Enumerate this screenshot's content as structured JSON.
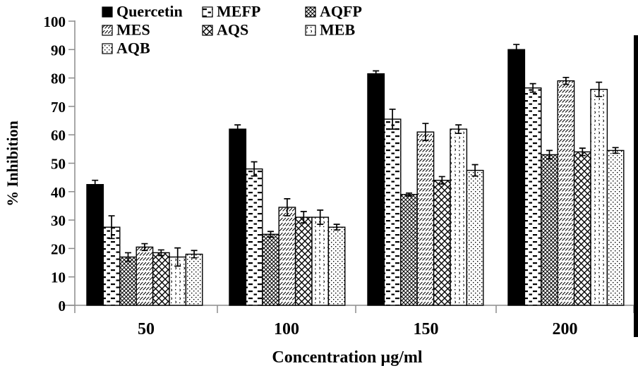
{
  "chart_data": {
    "type": "bar",
    "title": "",
    "xlabel": "Concentration µg/ml",
    "ylabel": "% Inhibition",
    "categories": [
      "50",
      "100",
      "150",
      "200"
    ],
    "ylim": [
      0,
      100
    ],
    "yticks": [
      0,
      10,
      20,
      30,
      40,
      50,
      60,
      70,
      80,
      90,
      100
    ],
    "grid": false,
    "error_bars": true,
    "legend": {
      "position": "top-left",
      "columns": 3,
      "row_major": true
    },
    "colors": {
      "bar_fill_base": "#ffffff",
      "bar_stroke": "#000000",
      "solid_bar": "#000000",
      "axis": "#8c8c8c",
      "text": "#000000",
      "background": "#ffffff"
    },
    "series": [
      {
        "name": "Quercetin",
        "pattern": "solid",
        "values": [
          42.5,
          62,
          81.5,
          90
        ],
        "errors": [
          1.5,
          1.5,
          1,
          1.8
        ]
      },
      {
        "name": "MEFP",
        "pattern": "dashes",
        "values": [
          27.5,
          48,
          65.5,
          76.5
        ],
        "errors": [
          4,
          2.5,
          3.5,
          1.5
        ]
      },
      {
        "name": "AQFP",
        "pattern": "fine-crosshatch",
        "values": [
          17,
          25,
          39,
          53
        ],
        "errors": [
          1.5,
          1,
          0.5,
          1.5
        ]
      },
      {
        "name": "MES",
        "pattern": "diagonal-lines",
        "values": [
          20.5,
          34.5,
          61,
          79
        ],
        "errors": [
          1.2,
          3,
          3,
          1.2
        ]
      },
      {
        "name": "AQS",
        "pattern": "wide-crosshatch",
        "values": [
          18.5,
          31,
          44,
          54
        ],
        "errors": [
          1,
          2,
          1.3,
          1.3
        ]
      },
      {
        "name": "MEB",
        "pattern": "speckles",
        "values": [
          17,
          31,
          62,
          76
        ],
        "errors": [
          3.2,
          2.5,
          1.5,
          2.5
        ]
      },
      {
        "name": "AQB",
        "pattern": "fine-dots",
        "values": [
          18,
          27.5,
          47.5,
          54.5
        ],
        "errors": [
          1.3,
          1,
          2,
          1
        ]
      }
    ]
  }
}
